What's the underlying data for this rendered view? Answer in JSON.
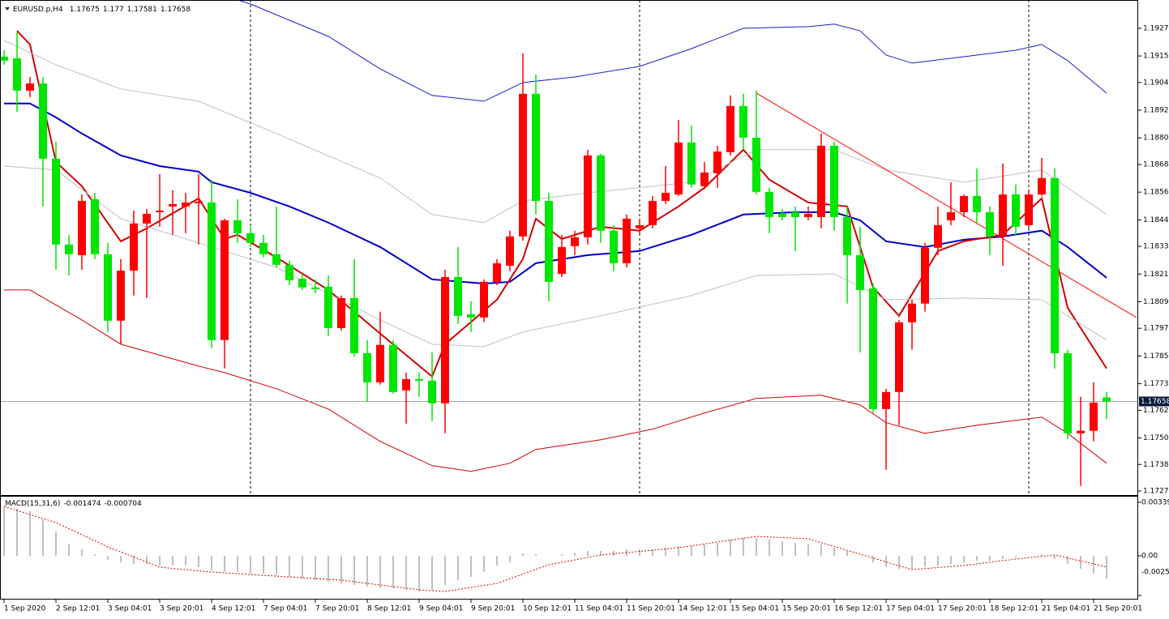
{
  "chart_data": [
    {
      "type": "candlestick",
      "title": "EURUSD.p,H4",
      "categories": [
        "1 Sep 2020",
        null,
        null,
        null,
        "2 Sep 12:01",
        null,
        null,
        null,
        "3 Sep 04:01",
        null,
        null,
        null,
        "3 Sep 20:01",
        null,
        null,
        null,
        "4 Sep 12:01",
        null,
        null,
        null,
        "7 Sep 04:01",
        null,
        null,
        null,
        "7 Sep 20:01",
        null,
        null,
        null,
        "8 Sep 12:01",
        null,
        null,
        null,
        "9 Sep 04:01",
        null,
        null,
        null,
        "9 Sep 20:01",
        null,
        null,
        null,
        "10 Sep 12:01",
        null,
        null,
        null,
        "11 Sep 04:01",
        null,
        null,
        null,
        "11 Sep 20:01",
        null,
        null,
        null,
        "14 Sep 12:01",
        null,
        null,
        null,
        "15 Sep 04:01",
        null,
        null,
        null,
        "15 Sep 20:01",
        null,
        null,
        null,
        "16 Sep 12:01",
        null,
        null,
        null,
        "17 Sep 04:01",
        null,
        null,
        null,
        "17 Sep 20:01",
        null,
        null,
        null,
        "18 Sep 12:01",
        null,
        null,
        null,
        "21 Sep 04:01",
        null,
        null,
        null,
        "21 Sep 20:01",
        null
      ],
      "open": [
        1.19152,
        1.19145,
        1.19005,
        1.19036,
        1.1871,
        1.18338,
        1.18292,
        1.18534,
        1.18296,
        1.18008,
        1.18225,
        1.18429,
        1.18478,
        1.18503,
        1.18503,
        1.18517,
        1.1852,
        1.17924,
        1.18443,
        1.18387,
        1.18345,
        1.18296,
        1.1825,
        1.1819,
        1.18152,
        1.18155,
        1.17976,
        1.18106,
        1.17867,
        1.17741,
        1.17903,
        1.17706,
        1.17755,
        1.17748,
        1.1765,
        1.18197,
        1.18036,
        1.18022,
        1.18176,
        1.18246,
        1.18373,
        1.18991,
        1.18527,
        1.18211,
        1.18331,
        1.18369,
        1.18724,
        1.18398,
        1.18257,
        1.18408,
        1.18422,
        1.18527,
        1.18555,
        1.1878,
        1.18591,
        1.18647,
        1.18738,
        1.18938,
        1.18801,
        1.18566,
        1.18471,
        1.18478,
        1.18457,
        1.18457,
        1.18766,
        1.18457,
        1.18292,
        1.18148,
        1.17625,
        1.17699,
        1.18001,
        1.18082,
        1.18324,
        1.18443,
        1.18478,
        1.18548,
        1.18478,
        1.18373,
        1.18555,
        1.18422,
        1.18555,
        1.18626,
        1.17867,
        1.1752,
        1.17531,
        1.17675
      ],
      "high": [
        1.1918,
        1.19257,
        1.19064,
        1.19064,
        1.18784,
        1.1838,
        1.18555,
        1.18562,
        1.18345,
        1.18275,
        1.18485,
        1.18492,
        1.18643,
        1.18573,
        1.18562,
        1.18643,
        1.18619,
        1.1845,
        1.18534,
        1.18415,
        1.1838,
        1.18503,
        1.18268,
        1.18211,
        1.18187,
        1.18204,
        1.18117,
        1.18275,
        1.17924,
        1.18047,
        1.17924,
        1.17783,
        1.17783,
        1.17871,
        1.18229,
        1.18327,
        1.18092,
        1.18187,
        1.18275,
        1.18398,
        1.19166,
        1.19075,
        1.18562,
        1.1838,
        1.18398,
        1.18749,
        1.18731,
        1.18422,
        1.18468,
        1.1845,
        1.18548,
        1.18678,
        1.18878,
        1.18854,
        1.18696,
        1.18766,
        1.18984,
        1.18991,
        1.19005,
        1.18584,
        1.18492,
        1.18503,
        1.18503,
        1.18819,
        1.18784,
        1.18503,
        1.18415,
        1.18169,
        1.17713,
        1.18011,
        1.18099,
        1.18345,
        1.18503,
        1.18608,
        1.18555,
        1.18668,
        1.18503,
        1.18689,
        1.18598,
        1.18573,
        1.18713,
        1.18668,
        1.17882,
        1.17678,
        1.17741,
        1.177
      ],
      "low": [
        1.19117,
        1.18913,
        1.18977,
        1.18503,
        1.18229,
        1.18204,
        1.18229,
        1.18275,
        1.17959,
        1.17906,
        1.18117,
        1.18106,
        1.18415,
        1.1838,
        1.18387,
        1.18338,
        1.17889,
        1.17801,
        1.18345,
        1.18327,
        1.18282,
        1.18239,
        1.18162,
        1.18141,
        1.18127,
        1.17941,
        1.17966,
        1.17853,
        1.17657,
        1.17731,
        1.17692,
        1.17562,
        1.17678,
        1.17573,
        1.1752,
        1.17994,
        1.17959,
        1.18001,
        1.18162,
        1.18222,
        1.18355,
        1.18468,
        1.18092,
        1.18197,
        1.18292,
        1.18338,
        1.18345,
        1.18222,
        1.18239,
        1.1838,
        1.18408,
        1.18513,
        1.18548,
        1.18584,
        1.18577,
        1.18584,
        1.18724,
        1.18749,
        1.18555,
        1.18387,
        1.18443,
        1.1831,
        1.18443,
        1.18408,
        1.18398,
        1.18082,
        1.17871,
        1.17608,
        1.17362,
        1.17555,
        1.17882,
        1.18047,
        1.18292,
        1.18422,
        1.18457,
        1.18433,
        1.18292,
        1.18246,
        1.1838,
        1.18408,
        1.18548,
        1.17801,
        1.17495,
        1.17292,
        1.17485,
        1.17581
      ],
      "close": [
        1.19135,
        1.19005,
        1.19036,
        1.1871,
        1.18338,
        1.18296,
        1.18527,
        1.18296,
        1.18008,
        1.18225,
        1.18429,
        1.18471,
        1.18485,
        1.18513,
        1.1852,
        1.18524,
        1.17924,
        1.18443,
        1.18387,
        1.18345,
        1.18296,
        1.1825,
        1.18183,
        1.18152,
        1.18145,
        1.17976,
        1.18106,
        1.17867,
        1.17741,
        1.17903,
        1.17699,
        1.17755,
        1.17748,
        1.1765,
        1.18197,
        1.18029,
        1.18022,
        1.18176,
        1.18257,
        1.18373,
        1.18991,
        1.18527,
        1.18176,
        1.18327,
        1.18369,
        1.18724,
        1.18398,
        1.18257,
        1.1845,
        1.18422,
        1.18527,
        1.18562,
        1.1878,
        1.18598,
        1.1865,
        1.18741,
        1.18938,
        1.18801,
        1.18566,
        1.18457,
        1.18457,
        1.18457,
        1.18471,
        1.18766,
        1.18457,
        1.18292,
        1.18141,
        1.17625,
        1.17699,
        1.18001,
        1.18082,
        1.18324,
        1.18422,
        1.18478,
        1.18548,
        1.18478,
        1.18373,
        1.18555,
        1.18415,
        1.18555,
        1.18626,
        1.17867,
        1.1752,
        1.17531,
        1.17653,
        1.17658
      ],
      "up_color": "#ff0000",
      "down_color": "#00e600",
      "lines": [
        {
          "color": "#0000c8",
          "width": 2,
          "x": [
            0,
            2,
            4,
            6,
            9,
            12,
            15,
            16,
            19,
            22,
            25,
            29,
            33,
            37,
            39,
            41,
            45,
            49,
            53,
            57,
            61,
            64,
            66,
            68,
            71,
            74,
            77,
            80,
            82,
            85
          ],
          "values": [
            1.18949,
            1.18949,
            1.18889,
            1.18819,
            1.18724,
            1.18678,
            1.18654,
            1.18608,
            1.18562,
            1.18503,
            1.18433,
            1.18327,
            1.18187,
            1.18169,
            1.18176,
            1.18257,
            1.18292,
            1.1831,
            1.1838,
            1.18468,
            1.18478,
            1.18478,
            1.18443,
            1.18352,
            1.18327,
            1.18359,
            1.18373,
            1.18398,
            1.18327,
            1.18194
          ]
        },
        {
          "color": "#d00000",
          "width": 2,
          "x": [
            1,
            2,
            4,
            6,
            9,
            11,
            15,
            17,
            18,
            21,
            25,
            29,
            33,
            34,
            38,
            40,
            41,
            43,
            46,
            49,
            52,
            54,
            57,
            59,
            62,
            65,
            67,
            69,
            72,
            74,
            77,
            80,
            82,
            85
          ],
          "values": [
            1.19264,
            1.19205,
            1.18696,
            1.18591,
            1.18352,
            1.18408,
            1.18538,
            1.18362,
            1.1838,
            1.18282,
            1.18141,
            1.17952,
            1.17766,
            1.17906,
            1.18099,
            1.18275,
            1.1845,
            1.18362,
            1.18415,
            1.18398,
            1.18503,
            1.18584,
            1.18749,
            1.18619,
            1.1852,
            1.18503,
            1.18152,
            1.18029,
            1.1831,
            1.18352,
            1.1838,
            1.18538,
            1.18064,
            1.17801
          ]
        },
        {
          "color": "#1c1cc8",
          "width": 1,
          "x": [
            18,
            19,
            25,
            29,
            33,
            37,
            40,
            44,
            49,
            53,
            57,
            62,
            64,
            66,
            68,
            70,
            74,
            78,
            80,
            82,
            85
          ],
          "values": [
            1.19398,
            1.1938,
            1.1924,
            1.19099,
            1.18984,
            1.18959,
            1.1904,
            1.19064,
            1.1911,
            1.19187,
            1.19275,
            1.19282,
            1.19293,
            1.19264,
            1.19159,
            1.19124,
            1.19152,
            1.1918,
            1.19205,
            1.19135,
            1.18994
          ]
        },
        {
          "color": "#d00000",
          "width": 1,
          "x": [
            0,
            2,
            6,
            9,
            15,
            17,
            21,
            25,
            29,
            33,
            36,
            39,
            41,
            46,
            50,
            54,
            58,
            63,
            66,
            68,
            71,
            75,
            80,
            82,
            85
          ],
          "values": [
            1.18141,
            1.18141,
            1.18011,
            1.17906,
            1.17811,
            1.17783,
            1.17713,
            1.17625,
            1.17485,
            1.1738,
            1.17355,
            1.1739,
            1.1745,
            1.17492,
            1.17538,
            1.17608,
            1.17671,
            1.17685,
            1.17643,
            1.17566,
            1.1752,
            1.17555,
            1.1759,
            1.1752,
            1.1739
          ]
        },
        {
          "color": "#c0c0c0",
          "width": 1,
          "x": [
            0,
            4,
            9,
            15,
            21,
            29,
            33,
            37,
            40,
            45,
            53,
            58,
            64,
            68,
            74,
            80,
            85
          ],
          "values": [
            1.19222,
            1.19117,
            1.19012,
            1.18959,
            1.18819,
            1.18626,
            1.18468,
            1.18433,
            1.18527,
            1.18562,
            1.18608,
            1.18749,
            1.18749,
            1.18661,
            1.18608,
            1.18661,
            1.18468
          ]
        },
        {
          "color": "#c0c0c0",
          "width": 1,
          "x": [
            0,
            4,
            9,
            15,
            21,
            29,
            33,
            37,
            40,
            46,
            53,
            58,
            64,
            68,
            74,
            80,
            85
          ],
          "values": [
            1.18678,
            1.18661,
            1.1845,
            1.18345,
            1.18239,
            1.18011,
            1.17906,
            1.17896,
            1.17959,
            1.18029,
            1.18117,
            1.18204,
            1.18211,
            1.18099,
            1.18106,
            1.18099,
            1.17924
          ]
        }
      ],
      "trendline": {
        "color": "#ff0000",
        "x": [
          58,
          87.3
        ],
        "values": [
          1.18994,
          1.18022
        ]
      },
      "separators": [
        19,
        49,
        79
      ],
      "ylim": [
        1.17256,
        1.1938
      ],
      "yticks": [
        1.19275,
        1.19155,
        {
          "value": 1.1904,
          "label": "1.19040"
        },
        {
          "value": 1.1892,
          "label": "1.18920"
        },
        {
          "value": 1.188,
          "label": "1.18800"
        },
        1.18685,
        1.18565,
        1.18445,
        {
          "value": 1.1833,
          "label": "1.18330"
        },
        {
          "value": 1.1821,
          "label": "1.18210"
        },
        {
          "value": 1.1809,
          "label": "1.18090"
        },
        1.17975,
        1.17855,
        1.17735,
        {
          "value": 1.1762,
          "label": "1.17620"
        },
        {
          "value": 1.175,
          "label": "1.17500"
        },
        1.17385,
        {
          "value": 1.1727,
          "label": "1.17270"
        }
      ]
    },
    {
      "type": "macd",
      "title": "MACD(15,31,6)",
      "histogram": [
        0.003086,
        0.002983,
        0.002829,
        0.002315,
        0.001543,
        0.000772,
        0.000412,
        0.000103,
        -0.000257,
        -0.000412,
        -0.000514,
        -0.000514,
        -0.000617,
        -0.000617,
        -0.000617,
        -0.00072,
        -0.000926,
        -0.001029,
        -0.001029,
        -0.001132,
        -0.001132,
        -0.001235,
        -0.001337,
        -0.00144,
        -0.001543,
        -0.001646,
        -0.001749,
        -0.001852,
        -0.001955,
        -0.002058,
        -0.002058,
        -0.00216,
        -0.002263,
        -0.00216,
        -0.001852,
        -0.001543,
        -0.001337,
        -0.001029,
        -0.000617,
        -0.000412,
        0.000154,
        0.000103,
        0,
        0.000103,
        0.000206,
        0.000309,
        0.000309,
        0.000309,
        0.000412,
        0.000412,
        0.000412,
        0.000514,
        0.000617,
        0.000617,
        0.00072,
        0.000823,
        0.001029,
        0.001132,
        0.001132,
        0.001029,
        0.000926,
        0.000823,
        0.00072,
        0.00072,
        0.000514,
        0.000309,
        0,
        -0.000412,
        -0.00072,
        -0.000823,
        -0.000823,
        -0.00072,
        -0.000617,
        -0.000514,
        -0.000412,
        -0.000309,
        -0.000309,
        -0.000206,
        -0.000103,
        0,
        0.000103,
        -0.000206,
        -0.000514,
        -0.000823,
        -0.001132,
        -0.001474
      ],
      "hist_color": "#c0c0c0",
      "signal": {
        "color": "#e00000",
        "x": [
          0,
          4,
          8,
          12,
          16,
          20,
          26,
          32,
          34,
          38,
          42,
          46,
          52,
          58,
          62,
          66,
          70,
          74,
          78,
          81,
          85
        ],
        "values": [
          0.003138,
          0.002109,
          0.000566,
          -0.00072,
          -0.001029,
          -0.001235,
          -0.001543,
          -0.00216,
          -0.002263,
          -0.001749,
          -0.000566,
          5.1e-05,
          0.000514,
          0.001235,
          0.00108,
          0.000103,
          -0.000874,
          -0.000617,
          -0.000206,
          5.1e-05,
          -0.000704
        ]
      },
      "ylim": [
        -0.00252,
        0.003395
      ],
      "yticks": [
        0.003395,
        {
          "value": 0,
          "label": "0.00"
        },
        -0.00252
      ]
    }
  ]
}
